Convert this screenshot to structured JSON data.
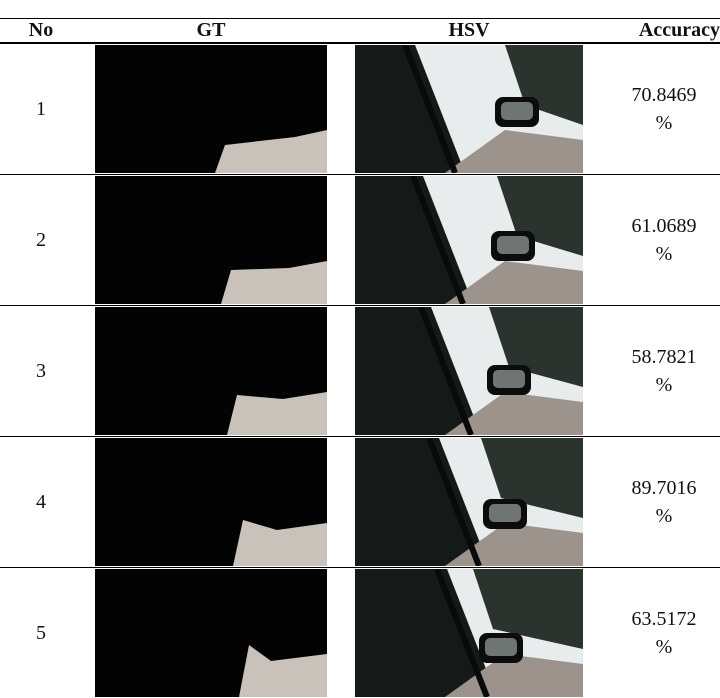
{
  "table": {
    "header": [
      "No",
      "GT",
      "HSV",
      "Accuracy"
    ],
    "rows": [
      [
        "1",
        "70.8469 %"
      ],
      [
        "2",
        "61.0689 %"
      ],
      [
        "3",
        "58.7821 %"
      ],
      [
        "4",
        "89.7016 %"
      ],
      [
        "5",
        "63.5172 %"
      ]
    ]
  }
}
